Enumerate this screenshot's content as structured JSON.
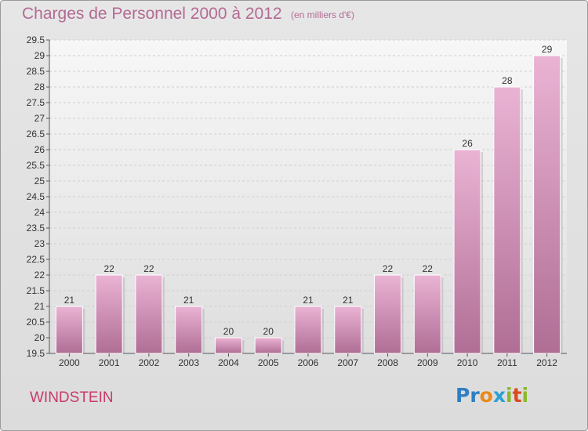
{
  "header": {
    "title": "Charges de Personnel 2000 à 2012",
    "subtitle": "(en milliers d'€)"
  },
  "footer": {
    "commune": "WINDSTEIN",
    "logo_text": "Proxiti"
  },
  "colors": {
    "bar_light": "#eab3d4",
    "bar_dark": "#b06e95",
    "title": "#b36a93",
    "commune": "#c73a6b"
  },
  "chart_data": {
    "type": "bar",
    "categories": [
      "2000",
      "2001",
      "2002",
      "2003",
      "2004",
      "2005",
      "2006",
      "2007",
      "2008",
      "2009",
      "2010",
      "2011",
      "2012"
    ],
    "values": [
      21,
      22,
      22,
      21,
      20,
      20,
      21,
      21,
      22,
      22,
      26,
      28,
      29
    ],
    "ylim": [
      19.5,
      29.5
    ],
    "yticks": [
      "19.5",
      "20",
      "20.5",
      "21",
      "21.5",
      "22",
      "22.5",
      "23",
      "23.5",
      "24",
      "24.5",
      "25",
      "25.5",
      "26",
      "26.5",
      "27",
      "27.5",
      "28",
      "28.5",
      "29",
      "29.5"
    ],
    "grid": true,
    "title": "Charges de Personnel 2000 à 2012",
    "xlabel": "",
    "ylabel": ""
  }
}
